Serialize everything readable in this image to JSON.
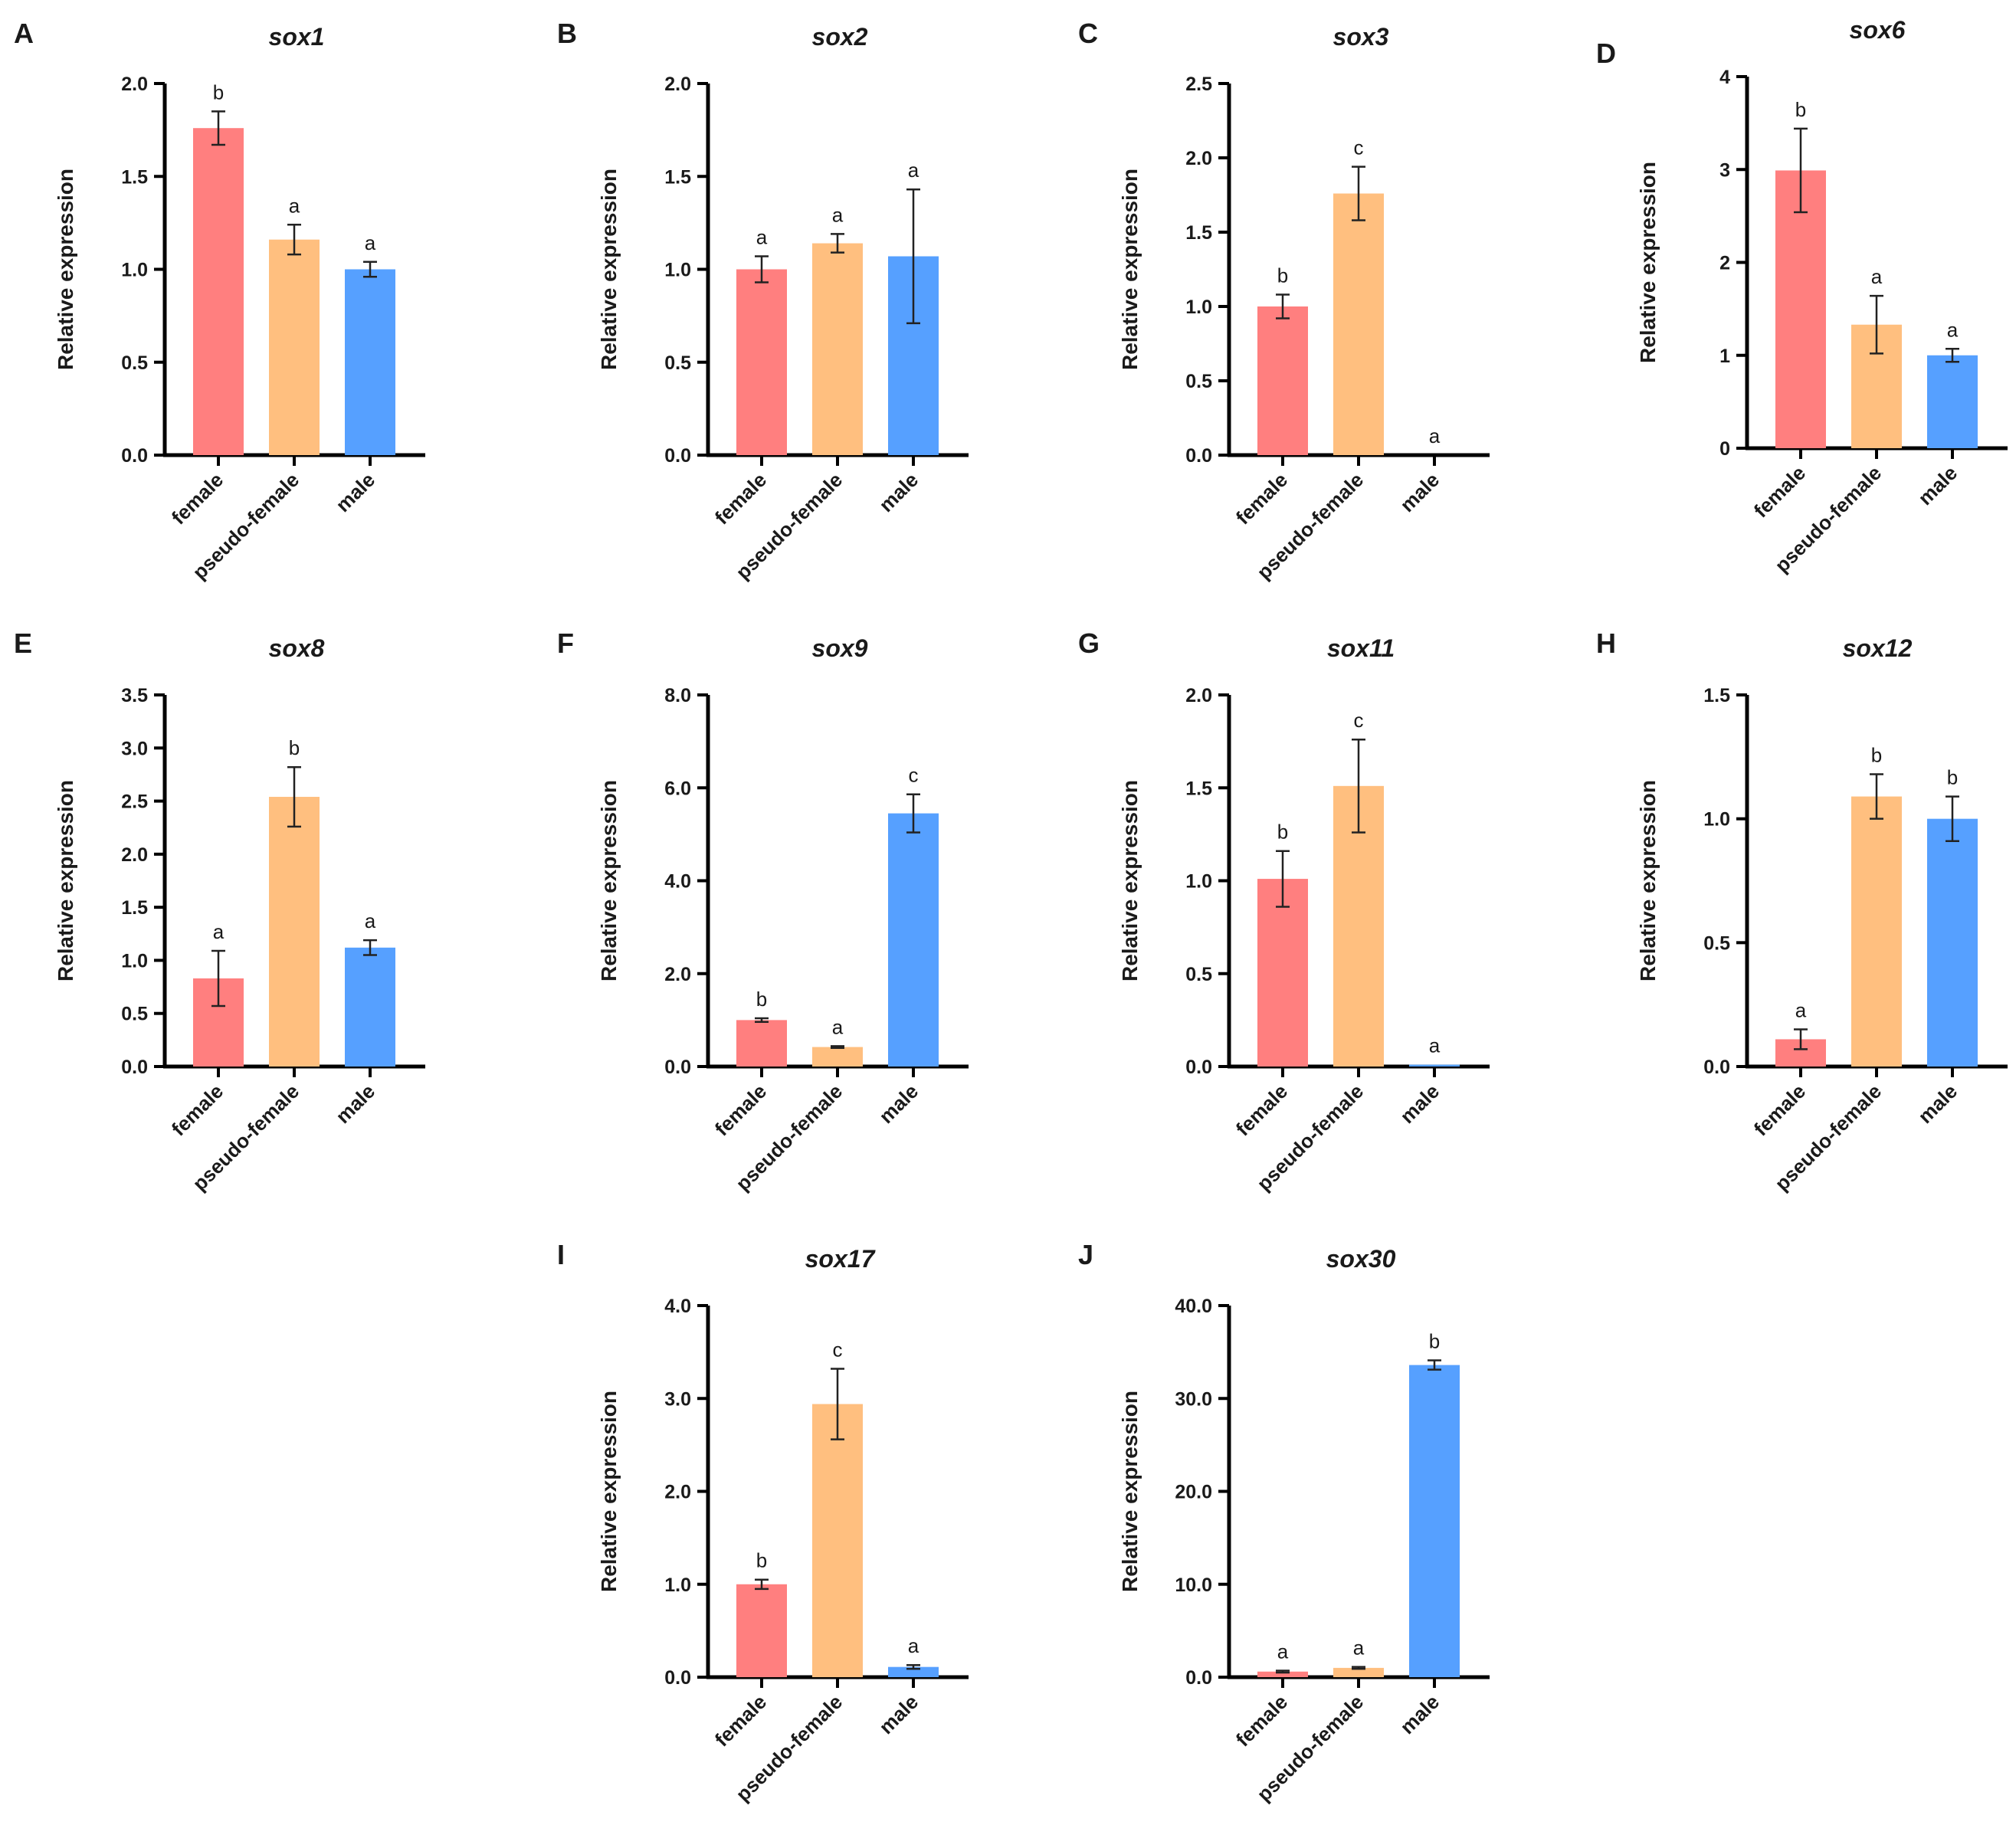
{
  "figure": {
    "colors": {
      "female": "#ff7f7f",
      "pseudo_female": "#ffbf7f",
      "male": "#56a0ff",
      "axis": "#000000",
      "text": "#1a1a1a"
    }
  },
  "chart_data": [
    {
      "panel": "A",
      "title": "sox1",
      "type": "bar",
      "ylabel": "Relative expression",
      "categories": [
        "female",
        "pseudo-female",
        "male"
      ],
      "ylim": [
        0,
        2.0
      ],
      "yticks": [
        "0.0",
        "0.5",
        "1.0",
        "1.5",
        "2.0"
      ],
      "values": [
        1.76,
        1.16,
        1.0
      ],
      "errors": [
        0.09,
        0.08,
        0.04
      ],
      "significance": [
        "b",
        "a",
        "a"
      ]
    },
    {
      "panel": "B",
      "title": "sox2",
      "type": "bar",
      "ylabel": "Relative expression",
      "categories": [
        "female",
        "pseudo-female",
        "male"
      ],
      "ylim": [
        0,
        2.0
      ],
      "yticks": [
        "0.0",
        "0.5",
        "1.0",
        "1.5",
        "2.0"
      ],
      "values": [
        1.0,
        1.14,
        1.07
      ],
      "errors": [
        0.07,
        0.05,
        0.36
      ],
      "significance": [
        "a",
        "a",
        "a"
      ]
    },
    {
      "panel": "C",
      "title": "sox3",
      "type": "bar",
      "ylabel": "Relative expression",
      "categories": [
        "female",
        "pseudo-female",
        "male"
      ],
      "ylim": [
        0,
        2.5
      ],
      "yticks": [
        "0.0",
        "0.5",
        "1.0",
        "1.5",
        "2.0",
        "2.5"
      ],
      "values": [
        1.0,
        1.76,
        0.0
      ],
      "errors": [
        0.08,
        0.18,
        0.0
      ],
      "significance": [
        "b",
        "c",
        "a"
      ]
    },
    {
      "panel": "D",
      "title": "sox6",
      "type": "bar",
      "ylabel": "Relative expression",
      "categories": [
        "female",
        "pseudo-female",
        "male"
      ],
      "ylim": [
        0,
        4
      ],
      "yticks": [
        "0",
        "1",
        "2",
        "3",
        "4"
      ],
      "values": [
        2.99,
        1.33,
        1.0
      ],
      "errors": [
        0.45,
        0.31,
        0.07
      ],
      "significance": [
        "b",
        "a",
        "a"
      ]
    },
    {
      "panel": "E",
      "title": "sox8",
      "type": "bar",
      "ylabel": "Relative expression",
      "categories": [
        "female",
        "pseudo-female",
        "male"
      ],
      "ylim": [
        0,
        3.5
      ],
      "yticks": [
        "0.0",
        "0.5",
        "1.0",
        "1.5",
        "2.0",
        "2.5",
        "3.0",
        "3.5"
      ],
      "values": [
        0.83,
        2.54,
        1.12
      ],
      "errors": [
        0.26,
        0.28,
        0.07
      ],
      "significance": [
        "a",
        "b",
        "a"
      ]
    },
    {
      "panel": "F",
      "title": "sox9",
      "type": "bar",
      "ylabel": "Relative expression",
      "categories": [
        "female",
        "pseudo-female",
        "male"
      ],
      "ylim": [
        0,
        8.0
      ],
      "yticks": [
        "0.0",
        "2.0",
        "4.0",
        "6.0",
        "8.0"
      ],
      "values": [
        1.0,
        0.42,
        5.45
      ],
      "errors": [
        0.04,
        0.02,
        0.41
      ],
      "significance": [
        "b",
        "a",
        "c"
      ]
    },
    {
      "panel": "G",
      "title": "sox11",
      "type": "bar",
      "ylabel": "Relative expression",
      "categories": [
        "female",
        "pseudo-female",
        "male"
      ],
      "ylim": [
        0,
        2.0
      ],
      "yticks": [
        "0.0",
        "0.5",
        "1.0",
        "1.5",
        "2.0"
      ],
      "values": [
        1.01,
        1.51,
        0.01
      ],
      "errors": [
        0.15,
        0.25,
        0.0
      ],
      "significance": [
        "b",
        "c",
        "a"
      ]
    },
    {
      "panel": "H",
      "title": "sox12",
      "type": "bar",
      "ylabel": "Relative expression",
      "categories": [
        "female",
        "pseudo-female",
        "male"
      ],
      "ylim": [
        0,
        1.5
      ],
      "yticks": [
        "0.0",
        "0.5",
        "1.0",
        "1.5"
      ],
      "values": [
        0.11,
        1.09,
        1.0
      ],
      "errors": [
        0.04,
        0.09,
        0.09
      ],
      "significance": [
        "a",
        "b",
        "b"
      ]
    },
    {
      "panel": "I",
      "title": "sox17",
      "type": "bar",
      "ylabel": "Relative expression",
      "categories": [
        "female",
        "pseudo-female",
        "male"
      ],
      "ylim": [
        0,
        4.0
      ],
      "yticks": [
        "0.0",
        "1.0",
        "2.0",
        "3.0",
        "4.0"
      ],
      "values": [
        1.0,
        2.94,
        0.11
      ],
      "errors": [
        0.05,
        0.38,
        0.02
      ],
      "significance": [
        "b",
        "c",
        "a"
      ]
    },
    {
      "panel": "J",
      "title": "sox30",
      "type": "bar",
      "ylabel": "Relative expression",
      "categories": [
        "female",
        "pseudo-female",
        "male"
      ],
      "ylim": [
        0,
        40.0
      ],
      "yticks": [
        "0.0",
        "10.0",
        "20.0",
        "30.0",
        "40.0"
      ],
      "values": [
        0.6,
        1.0,
        33.6
      ],
      "errors": [
        0.1,
        0.1,
        0.5
      ],
      "significance": [
        "a",
        "a",
        "b"
      ]
    }
  ]
}
